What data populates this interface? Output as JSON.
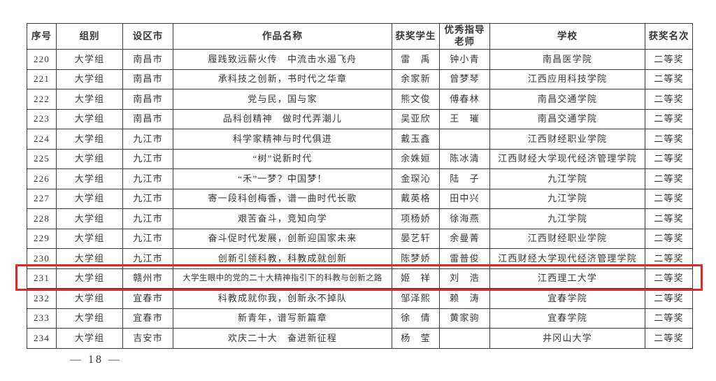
{
  "footer": {
    "page_number": "— 18 —"
  },
  "highlight": {
    "row_no": "231",
    "color": "#dd2b2b"
  },
  "table": {
    "columns": [
      {
        "key": "no",
        "label": "序号"
      },
      {
        "key": "group",
        "label": "组别"
      },
      {
        "key": "city",
        "label": "设区市"
      },
      {
        "key": "title",
        "label": "作品名称"
      },
      {
        "key": "student",
        "label": "获奖学生"
      },
      {
        "key": "teacher",
        "label": "优秀指导\n老师"
      },
      {
        "key": "school",
        "label": "学校"
      },
      {
        "key": "award",
        "label": "获奖名次"
      }
    ],
    "rows": [
      {
        "no": "220",
        "group": "大学组",
        "city": "南昌市",
        "title": "履践致远薪火传　中流击水遏飞舟",
        "student": "雷　禹",
        "teacher": "钟小青",
        "school": "南昌医学院",
        "award": "二等奖"
      },
      {
        "no": "221",
        "group": "大学组",
        "city": "南昌市",
        "title": "承科技之创新，书时代之华章",
        "student": "余家新",
        "teacher": "曾梦琴",
        "school": "江西应用科技学院",
        "award": "二等奖"
      },
      {
        "no": "222",
        "group": "大学组",
        "city": "南昌市",
        "title": "党与民，国与家",
        "student": "熊文俊",
        "teacher": "傅春林",
        "school": "南昌交通学院",
        "award": "二等奖"
      },
      {
        "no": "223",
        "group": "大学组",
        "city": "南昌市",
        "title": "品科创精神　做时代弄潮儿",
        "student": "吴亚欣",
        "teacher": "王　璀",
        "school": "南昌交通学院",
        "award": "二等奖"
      },
      {
        "no": "224",
        "group": "大学组",
        "city": "九江市",
        "title": "科学家精神与时代俱进",
        "student": "戴玉鑫",
        "teacher": "",
        "school": "江西财经职业学院",
        "award": "二等奖"
      },
      {
        "no": "225",
        "group": "大学组",
        "city": "九江市",
        "title": "“树”说新时代",
        "student": "余姝姮",
        "teacher": "陈冰清",
        "school": "江西财经大学现代经济管理学院",
        "award": "二等奖"
      },
      {
        "no": "226",
        "group": "大学组",
        "city": "九江市",
        "title": "“禾”一梦？中国梦！",
        "student": "金琛沁",
        "teacher": "陆　子",
        "school": "九江学院",
        "award": "二等奖"
      },
      {
        "no": "227",
        "group": "大学组",
        "city": "九江市",
        "title": "寄一段科创梅香，谱一曲时代长歌",
        "student": "戴英格",
        "teacher": "田中兴",
        "school": "九江学院",
        "award": "二等奖"
      },
      {
        "no": "228",
        "group": "大学组",
        "city": "九江市",
        "title": "艰苦奋斗，竞知向学",
        "student": "项杨娇",
        "teacher": "徐海燕",
        "school": "九江学院",
        "award": "二等奖"
      },
      {
        "no": "229",
        "group": "大学组",
        "city": "九江市",
        "title": "奋斗促时代发展，创新迎国家未来",
        "student": "晏艺轩",
        "teacher": "余曼菁",
        "school": "江西财经职业学院",
        "award": "二等奖"
      },
      {
        "no": "230",
        "group": "大学组",
        "city": "九江市",
        "title": "创新引领科教，科教成就创新",
        "student": "陈梦娇",
        "teacher": "雷普俊",
        "school": "江西财经大学现代经济管理学院",
        "award": "二等奖"
      },
      {
        "no": "231",
        "group": "大学组",
        "city": "赣州市",
        "title": "大学生眼中的党的二十大精神指引下的科教与创新之路",
        "student": "姬　祥",
        "teacher": "刘　浩",
        "school": "江西理工大学",
        "award": "二等奖"
      },
      {
        "no": "232",
        "group": "大学组",
        "city": "宜春市",
        "title": "科教成就你我，创新永不掉队",
        "student": "邹泽熙",
        "teacher": "赖　涛",
        "school": "宜春学院",
        "award": "二等奖"
      },
      {
        "no": "233",
        "group": "大学组",
        "city": "宜春市",
        "title": "新青年，谱写新篇章",
        "student": "徐　倩",
        "teacher": "黄家驹",
        "school": "宜春学院",
        "award": "二等奖"
      },
      {
        "no": "234",
        "group": "大学组",
        "city": "吉安市",
        "title": "欢庆二十大　奋进新征程",
        "student": "杨　莹",
        "teacher": "",
        "school": "井冈山大学",
        "award": "二等奖"
      }
    ]
  }
}
